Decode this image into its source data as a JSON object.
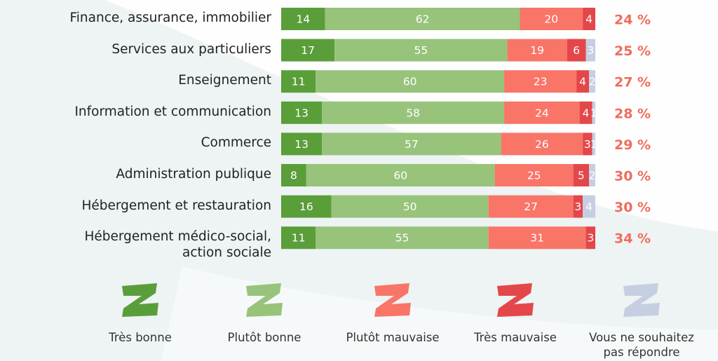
{
  "chart_data": {
    "type": "stacked_barh",
    "categories": [
      "Finance, assurance, immobilier",
      "Services aux particuliers",
      "Enseignement",
      "Information et communication",
      "Commerce",
      "Administration publique",
      "Hébergement et restauration",
      "Hébergement médico-social,\naction sociale"
    ],
    "series": [
      {
        "name": "Très bonne",
        "color": "#5a9e3a",
        "values": [
          14,
          17,
          11,
          13,
          13,
          8,
          16,
          11
        ]
      },
      {
        "name": "Plutôt bonne",
        "color": "#97c37b",
        "values": [
          62,
          55,
          60,
          58,
          57,
          60,
          50,
          55
        ]
      },
      {
        "name": "Plutôt mauvaise",
        "color": "#f97568",
        "values": [
          20,
          19,
          23,
          24,
          26,
          25,
          27,
          31
        ]
      },
      {
        "name": "Très mauvaise",
        "color": "#e3474a",
        "values": [
          4,
          6,
          4,
          4,
          3,
          5,
          3,
          3
        ]
      },
      {
        "name": "Vous ne souhaitez\npas répondre",
        "color": "#c6cee2",
        "values": [
          null,
          3,
          2,
          1,
          1,
          2,
          4,
          null
        ]
      }
    ],
    "xlim": [
      0,
      100
    ],
    "totals": {
      "values": [
        24,
        25,
        27,
        28,
        29,
        30,
        30,
        34
      ],
      "value_labels": [
        "24 %",
        "25 %",
        "27 %",
        "28 %",
        "29 %",
        "30 %",
        "30 %",
        "34 %"
      ]
    }
  }
}
